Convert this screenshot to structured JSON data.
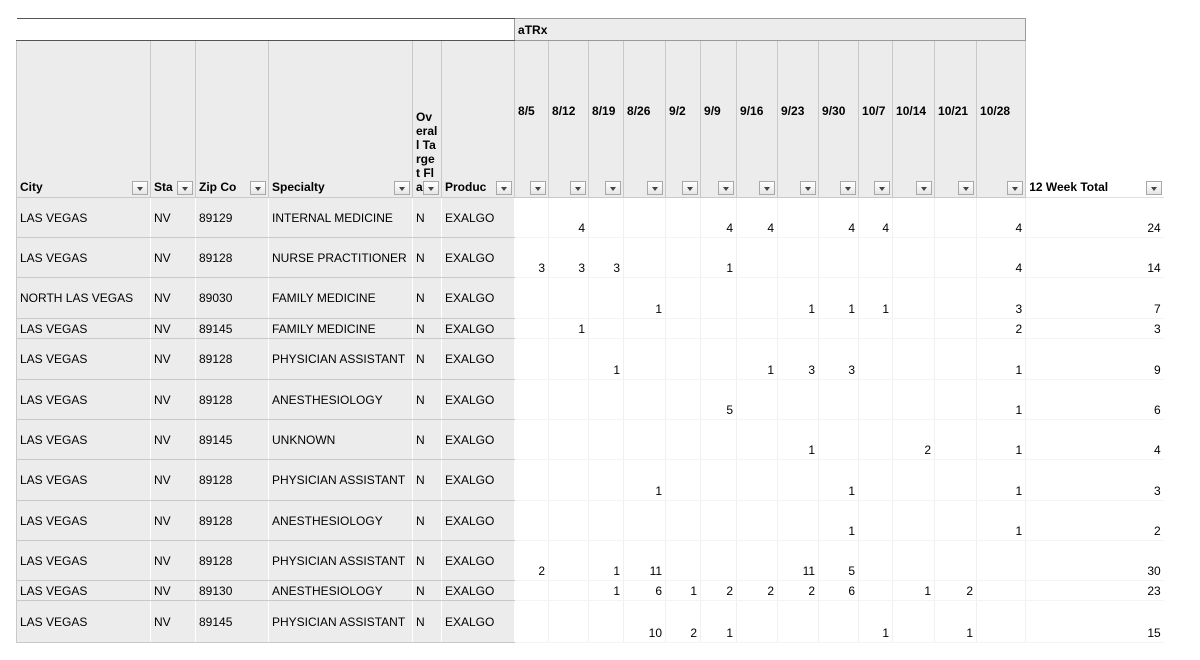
{
  "table": {
    "group_header": "aTRx",
    "columns": [
      "City",
      "Sta",
      "Zip Co",
      "Specialty",
      "Overall Target Flag",
      "Produc"
    ],
    "weeks": [
      "8/5",
      "8/12",
      "8/19",
      "8/26",
      "9/2",
      "9/9",
      "9/16",
      "9/23",
      "9/30",
      "10/7",
      "10/14",
      "10/21",
      "10/28"
    ],
    "total_header": "12 Week Total",
    "rows": [
      {
        "city": "LAS VEGAS",
        "state": "NV",
        "zip": "89129",
        "specialty": "INTERNAL MEDICINE",
        "flag": "N",
        "product": "EXALGO",
        "weeks": [
          null,
          4,
          null,
          null,
          null,
          4,
          4,
          null,
          4,
          4,
          null,
          null,
          4
        ],
        "total": 24
      },
      {
        "city": "LAS VEGAS",
        "state": "NV",
        "zip": "89128",
        "specialty": "NURSE PRACTITIONER",
        "flag": "N",
        "product": "EXALGO",
        "weeks": [
          3,
          3,
          3,
          null,
          null,
          1,
          null,
          null,
          null,
          null,
          null,
          null,
          4
        ],
        "total": 14
      },
      {
        "city": "NORTH LAS VEGAS",
        "state": "NV",
        "zip": "89030",
        "specialty": "FAMILY MEDICINE",
        "flag": "N",
        "product": "EXALGO",
        "weeks": [
          null,
          null,
          null,
          1,
          null,
          null,
          null,
          1,
          1,
          1,
          null,
          null,
          3
        ],
        "total": 7
      },
      {
        "city": "LAS VEGAS",
        "state": "NV",
        "zip": "89145",
        "specialty": "FAMILY MEDICINE",
        "flag": "N",
        "product": "EXALGO",
        "weeks": [
          null,
          1,
          null,
          null,
          null,
          null,
          null,
          null,
          null,
          null,
          null,
          null,
          2
        ],
        "total": 3
      },
      {
        "city": "LAS VEGAS",
        "state": "NV",
        "zip": "89128",
        "specialty": "PHYSICIAN ASSISTANT",
        "flag": "N",
        "product": "EXALGO",
        "weeks": [
          null,
          null,
          1,
          null,
          null,
          null,
          1,
          3,
          3,
          null,
          null,
          null,
          1
        ],
        "total": 9
      },
      {
        "city": "LAS VEGAS",
        "state": "NV",
        "zip": "89128",
        "specialty": "ANESTHESIOLOGY",
        "flag": "N",
        "product": "EXALGO",
        "weeks": [
          null,
          null,
          null,
          null,
          null,
          5,
          null,
          null,
          null,
          null,
          null,
          null,
          1
        ],
        "total": 6
      },
      {
        "city": "LAS VEGAS",
        "state": "NV",
        "zip": "89145",
        "specialty": "UNKNOWN",
        "flag": "N",
        "product": "EXALGO",
        "weeks": [
          null,
          null,
          null,
          null,
          null,
          null,
          null,
          1,
          null,
          null,
          2,
          null,
          1
        ],
        "total": 4
      },
      {
        "city": "LAS VEGAS",
        "state": "NV",
        "zip": "89128",
        "specialty": "PHYSICIAN ASSISTANT",
        "flag": "N",
        "product": "EXALGO",
        "weeks": [
          null,
          null,
          null,
          1,
          null,
          null,
          null,
          null,
          1,
          null,
          null,
          null,
          1
        ],
        "total": 3
      },
      {
        "city": "LAS VEGAS",
        "state": "NV",
        "zip": "89128",
        "specialty": "ANESTHESIOLOGY",
        "flag": "N",
        "product": "EXALGO",
        "weeks": [
          null,
          null,
          null,
          null,
          null,
          null,
          null,
          null,
          1,
          null,
          null,
          null,
          1
        ],
        "total": 2
      },
      {
        "city": "LAS VEGAS",
        "state": "NV",
        "zip": "89128",
        "specialty": "PHYSICIAN ASSISTANT",
        "flag": "N",
        "product": "EXALGO",
        "weeks": [
          2,
          null,
          1,
          11,
          null,
          null,
          null,
          11,
          5,
          null,
          null,
          null,
          null
        ],
        "total": 30
      },
      {
        "city": "LAS VEGAS",
        "state": "NV",
        "zip": "89130",
        "specialty": "ANESTHESIOLOGY",
        "flag": "N",
        "product": "EXALGO",
        "weeks": [
          null,
          null,
          1,
          6,
          1,
          2,
          2,
          2,
          6,
          null,
          1,
          2,
          null
        ],
        "total": 23
      },
      {
        "city": "LAS VEGAS",
        "state": "NV",
        "zip": "89145",
        "specialty": "PHYSICIAN ASSISTANT",
        "flag": "N",
        "product": "EXALGO",
        "weeks": [
          null,
          null,
          null,
          10,
          2,
          1,
          null,
          null,
          null,
          1,
          null,
          1,
          null
        ],
        "total": 15
      }
    ]
  }
}
